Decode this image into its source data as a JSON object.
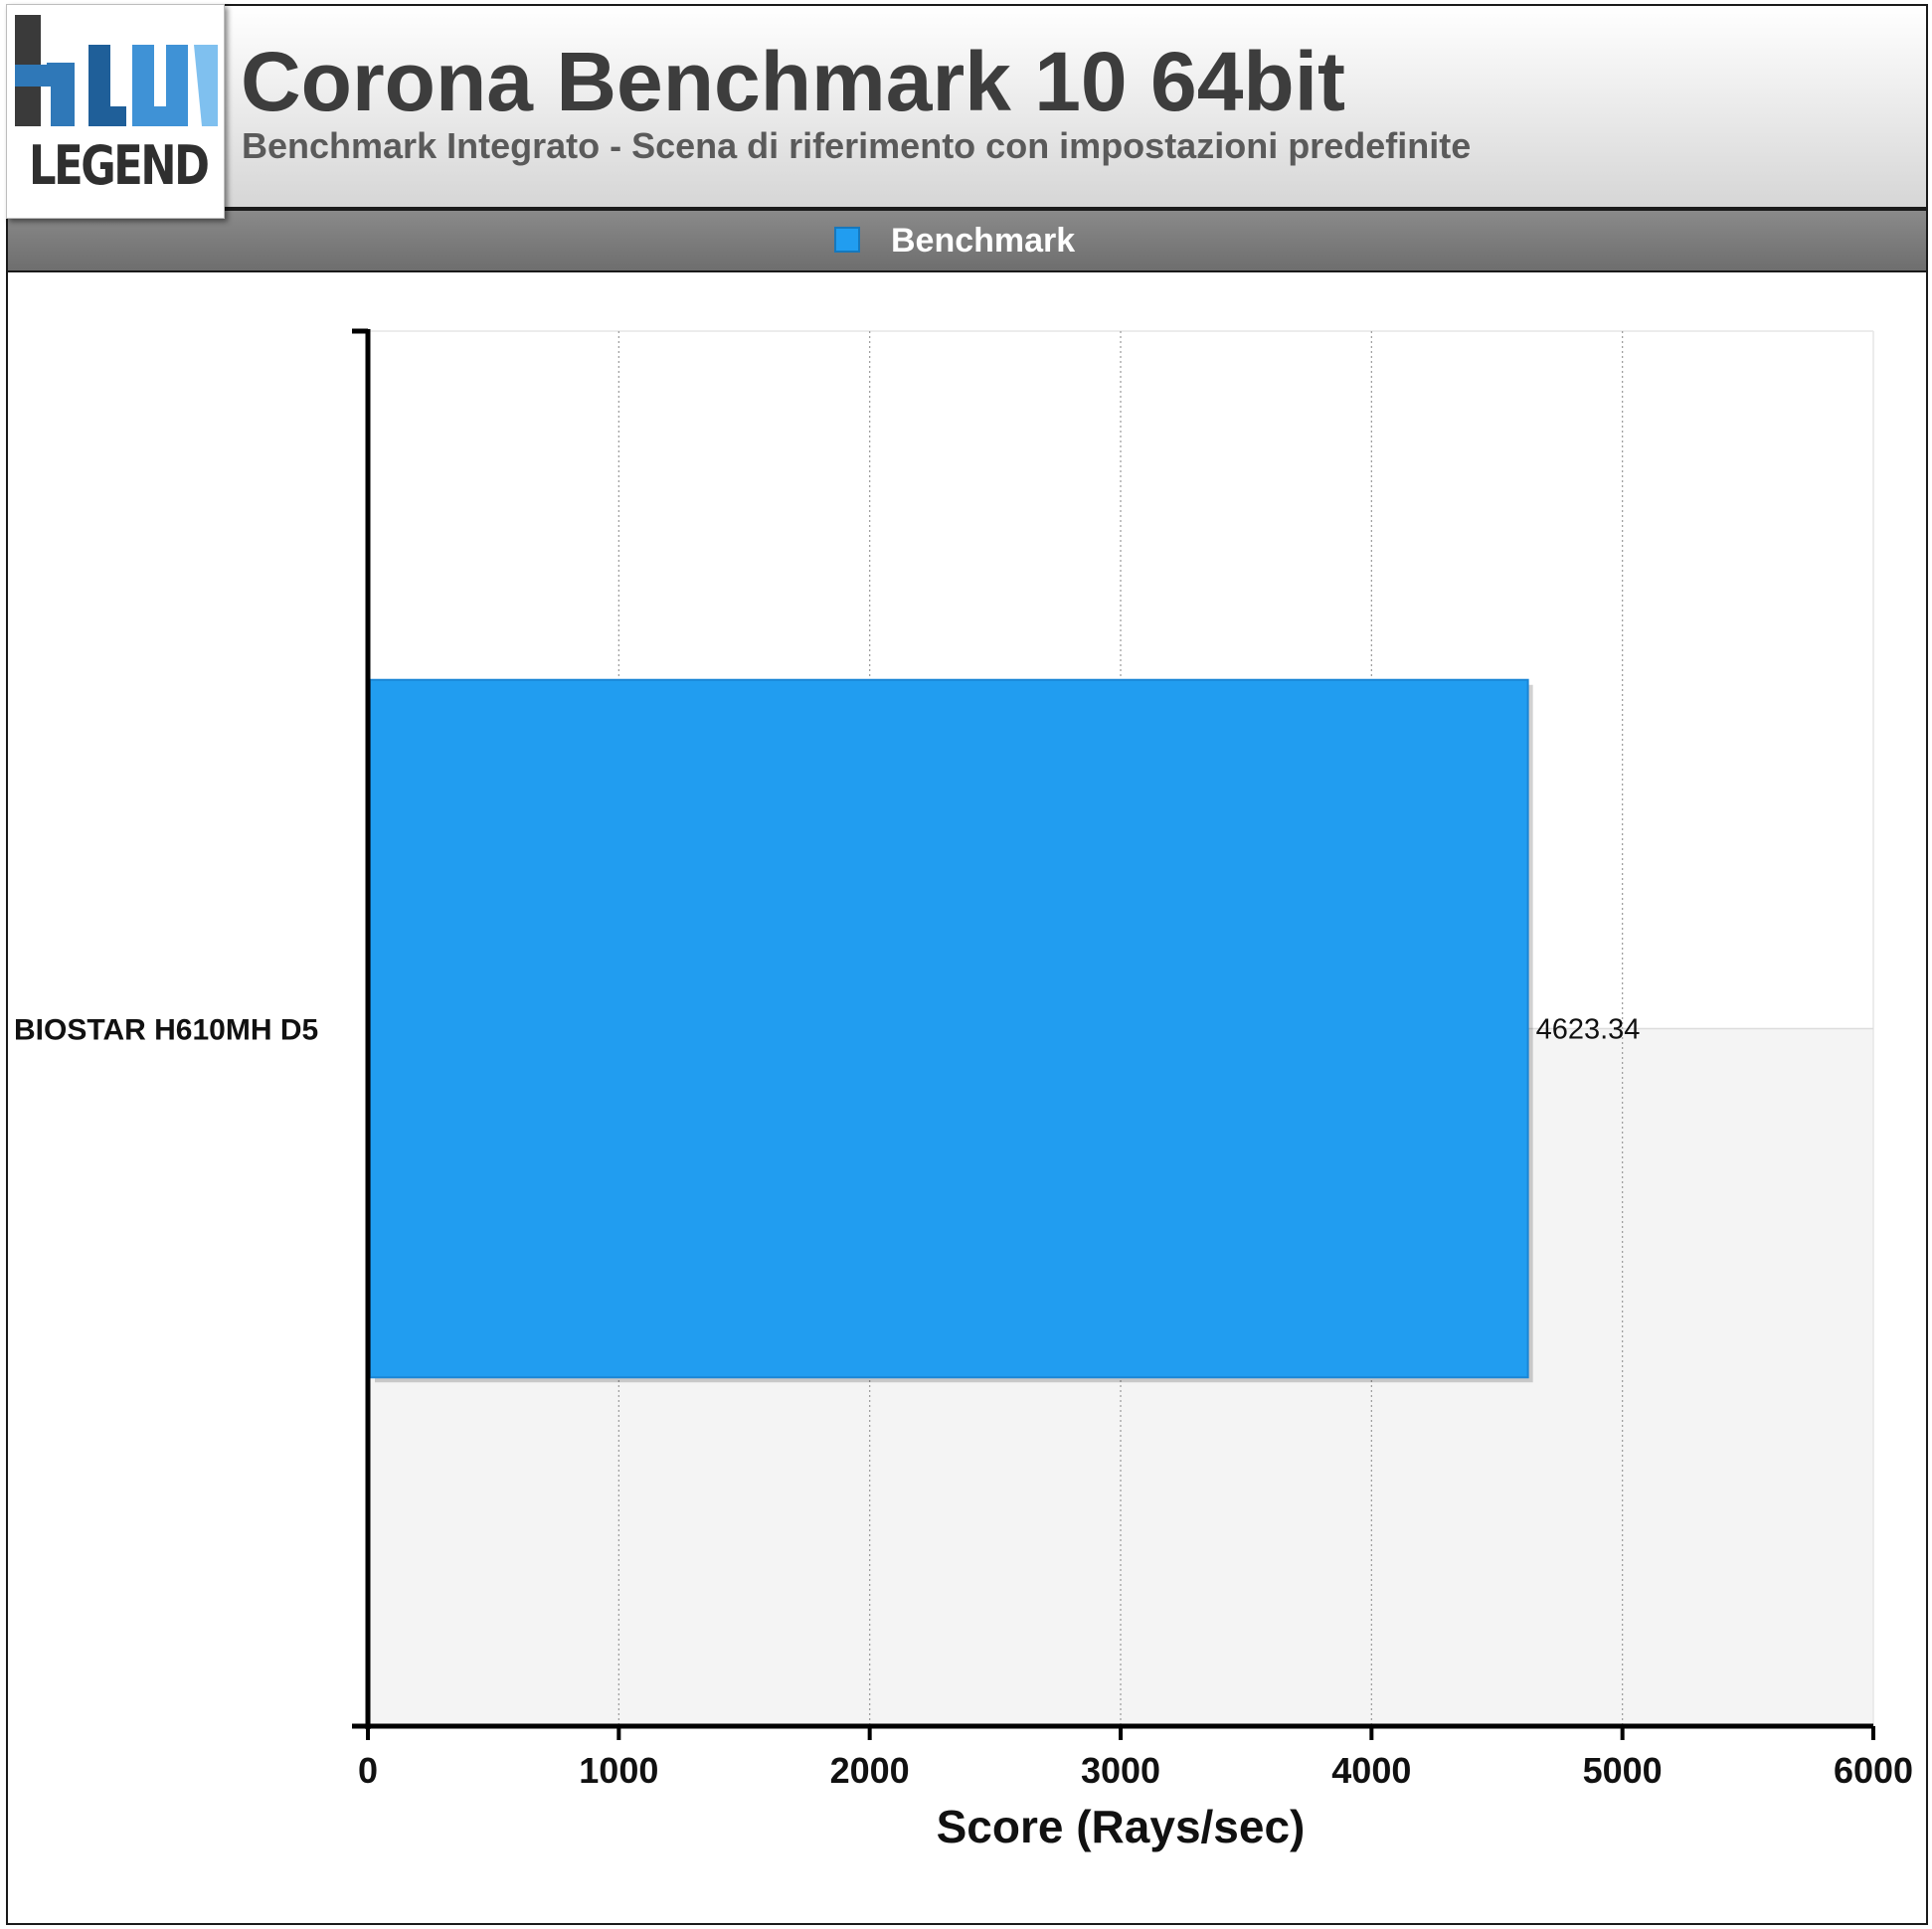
{
  "header": {
    "title": "Corona Benchmark 10 64bit",
    "subtitle": "Benchmark Integrato - Scena di riferimento con impostazioni predefinite",
    "logo_text": "LEGEND"
  },
  "legend": {
    "label": "Benchmark",
    "color": "#219df0"
  },
  "chart_data": {
    "type": "bar",
    "orientation": "horizontal",
    "categories": [
      "BIOSTAR H610MH D5"
    ],
    "series": [
      {
        "name": "Benchmark",
        "values": [
          4623.34
        ]
      }
    ],
    "value_labels": [
      "4623.34"
    ],
    "xlabel": "Score (Rays/sec)",
    "ylabel": "",
    "xlim": [
      0,
      6000
    ],
    "xticks": [
      "0",
      "1000",
      "2000",
      "3000",
      "4000",
      "5000",
      "6000"
    ],
    "grid": true,
    "legend_position": "top-center",
    "bar_color": "#219df0"
  }
}
